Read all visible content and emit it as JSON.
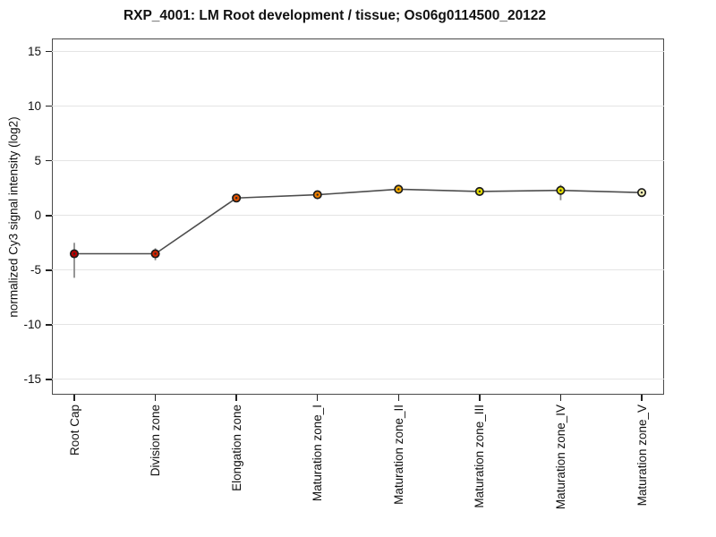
{
  "chart_data": {
    "type": "line",
    "title": "RXP_4001: LM Root development / tissue; Os06g0114500_20122",
    "ylabel": "normalized Cy3 signal intensity (log2)",
    "xlabel": "",
    "categories": [
      "Root Cap",
      "Division zone",
      "Elongation zone",
      "Maturation zone_I",
      "Maturation zone_II",
      "Maturation zone_III",
      "Maturation zone_IV",
      "Maturation zone_V"
    ],
    "values": [
      -3.5,
      -3.5,
      1.6,
      1.9,
      2.4,
      2.2,
      2.3,
      2.1
    ],
    "error_bars": [
      {
        "index": 0,
        "low": -5.7,
        "high": -2.5
      },
      {
        "index": 1,
        "low": -4.1,
        "high": -3.0
      },
      {
        "index": 6,
        "low": 1.4,
        "high": 2.8
      }
    ],
    "point_colors": [
      "#b80000",
      "#d32400",
      "#e25200",
      "#f08000",
      "#f5ab00",
      "#e4dc00",
      "#e9e400",
      "#f4f0b8"
    ],
    "marker_outline_color": "#1c1c1c",
    "marker_center_dot_color": "#2a2a2a",
    "line_color": "#4d4d4d",
    "error_bar_color": "#8a8a8a",
    "grid_color": "#e4e4e4",
    "axis_box_color": "#4a4a4a",
    "yticks": [
      15,
      10,
      5,
      0,
      -5,
      -10,
      -15
    ],
    "ylim": [
      -16.4,
      16.2
    ],
    "grid": true,
    "legend": "none"
  }
}
